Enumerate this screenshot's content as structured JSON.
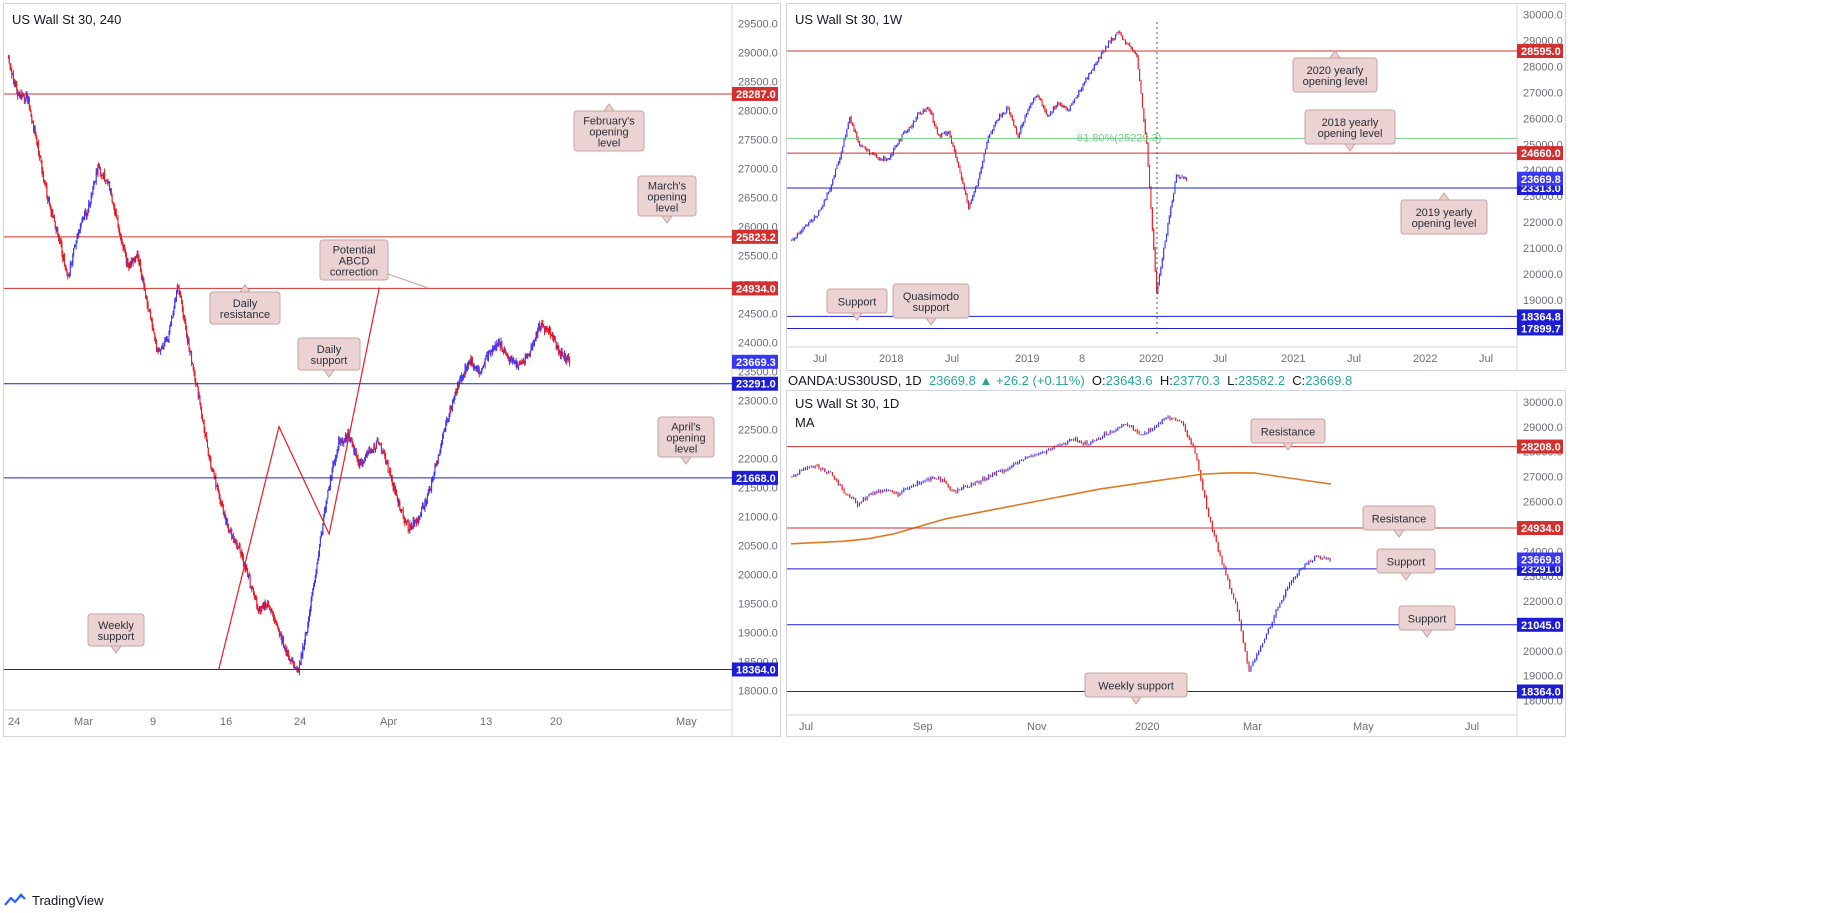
{
  "branding": {
    "name": "TradingView"
  },
  "header": {
    "symbol": "OANDA:US30USD, 1D",
    "last": "23669.8",
    "change": "+26.2 (+0.11%)",
    "o_label": "O:",
    "o": "23643.6",
    "h_label": "H:",
    "h": "23770.3",
    "l_label": "L:",
    "l": "23582.2",
    "c_label": "C:",
    "c": "23669.8"
  },
  "colors": {
    "up": "#3b34ff",
    "down": "#e81c24",
    "resistance": "#d32f2f",
    "support": "#1d1dd6",
    "fib": "#74cf8a",
    "ma": "#e07a22",
    "annotation_bg": "#ecd3d3",
    "annotation_border": "#c9a0a0"
  },
  "chart_data": [
    {
      "id": "h4",
      "title": "US Wall St 30, 240",
      "type": "candlestick",
      "ylim": [
        17700,
        29700
      ],
      "y_ticks": [
        18000,
        18500,
        19000,
        19500,
        20000,
        20500,
        21000,
        21500,
        22000,
        22500,
        23000,
        23500,
        24000,
        24500,
        25000,
        25500,
        26000,
        26500,
        27000,
        27500,
        28000,
        28500,
        29000,
        29500
      ],
      "x_ticks": [
        "24",
        "Mar",
        "9",
        "16",
        "24",
        "Apr",
        "13",
        "20",
        "May"
      ],
      "path": [
        28950,
        28300,
        28200,
        27400,
        26500,
        25900,
        25100,
        25900,
        26300,
        27000,
        26800,
        26050,
        25300,
        25500,
        24600,
        23800,
        24100,
        25000,
        24000,
        23100,
        22100,
        21400,
        20800,
        20500,
        19950,
        19400,
        19500,
        19000,
        18600,
        18364,
        19200,
        20400,
        21500,
        22300,
        22400,
        21900,
        22100,
        22300,
        21800,
        21200,
        20800,
        21000,
        21400,
        22100,
        22800,
        23300,
        23700,
        23500,
        23800,
        24000,
        23700,
        23600,
        23800,
        24300,
        24200,
        23850,
        23669
      ],
      "levels": [
        {
          "value": 28287.0,
          "label": "28287.0",
          "kind": "resistance"
        },
        {
          "value": 25823.2,
          "label": "25823.2",
          "kind": "resistance"
        },
        {
          "value": 24934.0,
          "label": "24934.0",
          "kind": "resistance"
        },
        {
          "value": 23291.0,
          "label": "23291.0",
          "kind": "support"
        },
        {
          "value": 21668.0,
          "label": "21668.0",
          "kind": "support"
        },
        {
          "value": 18364.0,
          "label": "18364.0",
          "kind": "support"
        }
      ],
      "last": {
        "value": 23669.3,
        "label": "23669.3"
      },
      "annotations": [
        {
          "text": [
            "February's",
            "opening",
            "level"
          ],
          "pointer": "up"
        },
        {
          "text": [
            "March's",
            "opening",
            "level"
          ],
          "pointer": "down"
        },
        {
          "text": [
            "Potential",
            "ABCD",
            "correction"
          ],
          "pointer": "right"
        },
        {
          "text": [
            "Daily",
            "resistance"
          ],
          "pointer": "up"
        },
        {
          "text": [
            "Daily",
            "support"
          ],
          "pointer": "down"
        },
        {
          "text": [
            "April's",
            "opening",
            "level"
          ],
          "pointer": "down"
        },
        {
          "text": [
            "Weekly",
            "support"
          ],
          "pointer": "down"
        }
      ],
      "abcd": [
        [
          21,
          18364
        ],
        [
          27,
          22550
        ],
        [
          32,
          20700
        ],
        [
          37,
          24950
        ]
      ]
    },
    {
      "id": "w1",
      "title": "US Wall St 30, 1W",
      "type": "candlestick",
      "ylim": [
        17300,
        30100
      ],
      "y_ticks": [
        18000,
        19000,
        20000,
        21000,
        22000,
        23000,
        24000,
        25000,
        26000,
        27000,
        28000,
        29000,
        30000
      ],
      "x_ticks": [
        "Jul",
        "2018",
        "Jul",
        "2019",
        "8",
        "2020",
        "Jul",
        "2021",
        "Jul",
        "2022",
        "Jul"
      ],
      "path": [
        21300,
        21600,
        22000,
        22400,
        23300,
        24500,
        26000,
        25000,
        24700,
        24400,
        24500,
        25200,
        25600,
        26200,
        26400,
        25300,
        25500,
        24100,
        22600,
        23600,
        25300,
        26000,
        26400,
        25300,
        26400,
        26900,
        26100,
        26600,
        26300,
        26900,
        27600,
        28200,
        28800,
        29300,
        28900,
        28400,
        25000,
        19300,
        21600,
        23800,
        23669
      ],
      "levels": [
        {
          "value": 28595.0,
          "label": "28595.0",
          "kind": "resistance"
        },
        {
          "value": 24660.0,
          "label": "24660.0",
          "kind": "resistance"
        },
        {
          "value": 23313.0,
          "label": "23313.0",
          "kind": "support"
        },
        {
          "value": 18364.8,
          "label": "18364.8",
          "kind": "support"
        },
        {
          "value": 17899.7,
          "label": "17899.7",
          "kind": "support"
        }
      ],
      "fib": {
        "value": 25229.3,
        "label": "61.80%(25229.3)"
      },
      "last": {
        "value": 23669.8,
        "label": "23669.8"
      },
      "annotations": [
        {
          "text": [
            "2020 yearly",
            "opening level"
          ],
          "pointer": "up"
        },
        {
          "text": [
            "2018 yearly",
            "opening level"
          ],
          "pointer": "down"
        },
        {
          "text": [
            "2019 yearly",
            "opening level"
          ],
          "pointer": "up"
        },
        {
          "text": [
            "Support"
          ],
          "pointer": "down"
        },
        {
          "text": [
            "Quasimodo",
            "support"
          ],
          "pointer": "down"
        }
      ]
    },
    {
      "id": "d1",
      "title": "US Wall St 30, 1D",
      "subtitle": "MA",
      "type": "candlestick",
      "ylim": [
        17500,
        30200
      ],
      "y_ticks": [
        18000,
        19000,
        20000,
        21000,
        22000,
        23000,
        24000,
        25000,
        26000,
        27000,
        28000,
        29000,
        30000
      ],
      "x_ticks": [
        "Jul",
        "Sep",
        "Nov",
        "2020",
        "Mar",
        "May",
        "Jul"
      ],
      "path": [
        27000,
        27300,
        27400,
        27100,
        26400,
        25900,
        26300,
        26500,
        26300,
        26600,
        26900,
        27000,
        26400,
        26600,
        26800,
        27100,
        27300,
        27600,
        27900,
        28000,
        28300,
        28500,
        28300,
        28600,
        28900,
        29100,
        28700,
        29000,
        29400,
        29200,
        28000,
        25400,
        23500,
        21900,
        19200,
        20300,
        21600,
        22700,
        23400,
        23800,
        23669
      ],
      "ma": [
        24300,
        24350,
        24400,
        24500,
        24700,
        25000,
        25300,
        25500,
        25700,
        25900,
        26100,
        26300,
        26500,
        26650,
        26800,
        26950,
        27100,
        27150,
        27150,
        27000,
        26850,
        26700
      ],
      "levels": [
        {
          "value": 28208.0,
          "label": "28208.0",
          "kind": "resistance"
        },
        {
          "value": 24934.0,
          "label": "24934.0",
          "kind": "resistance"
        },
        {
          "value": 23291.0,
          "label": "23291.0",
          "kind": "support"
        },
        {
          "value": 21045.0,
          "label": "21045.0",
          "kind": "support"
        },
        {
          "value": 18364.0,
          "label": "18364.0",
          "kind": "support"
        }
      ],
      "last": {
        "value": 23669.8,
        "label": "23669.8"
      },
      "annotations": [
        {
          "text": [
            "Resistance"
          ],
          "pointer": "down"
        },
        {
          "text": [
            "Resistance"
          ],
          "pointer": "down"
        },
        {
          "text": [
            "Support"
          ],
          "pointer": "down"
        },
        {
          "text": [
            "Support"
          ],
          "pointer": "down"
        },
        {
          "text": [
            "Weekly support"
          ],
          "pointer": "down"
        }
      ]
    }
  ]
}
